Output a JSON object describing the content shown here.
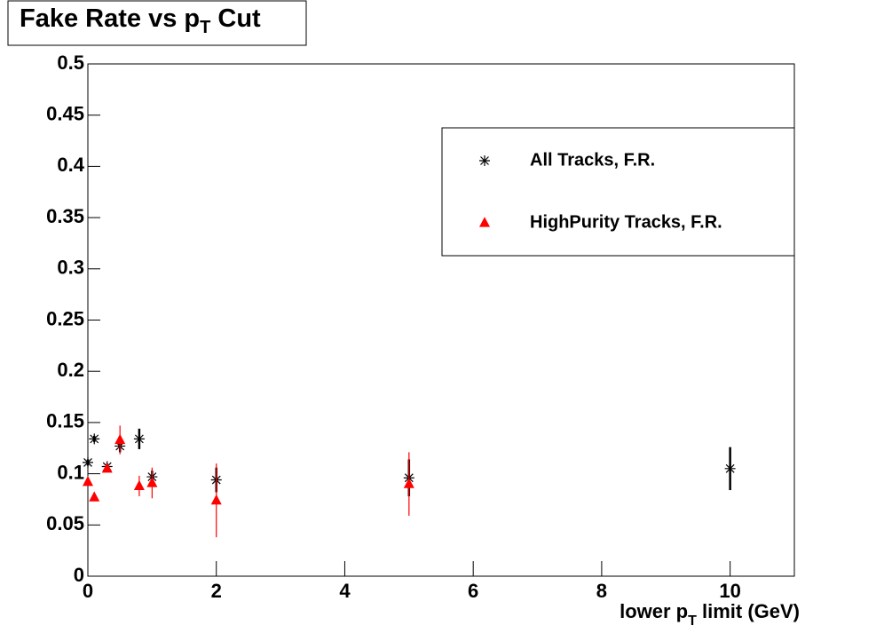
{
  "chart_data": {
    "type": "scatter",
    "title": {
      "text": "Fake Rate vs p",
      "subscript": "T",
      "suffix": " Cut"
    },
    "x_label": {
      "text": "lower p",
      "subscript": "T",
      "suffix": " limit (GeV)"
    },
    "xlim": [
      0,
      11
    ],
    "xticks": [
      0,
      2,
      4,
      6,
      8,
      10
    ],
    "ylim": [
      0,
      0.5
    ],
    "yticks": [
      0,
      0.05,
      0.1,
      0.15,
      0.2,
      0.25,
      0.3,
      0.35,
      0.4,
      0.45,
      0.5
    ],
    "legend": "upper right",
    "series": [
      {
        "name": "All Tracks, F.R.",
        "color": "#000000",
        "marker": "star",
        "x": [
          0,
          0.1,
          0.3,
          0.5,
          0.8,
          1,
          2,
          5,
          10
        ],
        "values": [
          0.111,
          0.134,
          0.107,
          0.127,
          0.134,
          0.097,
          0.094,
          0.096,
          0.105
        ],
        "errors": [
          0.003,
          0.003,
          0.003,
          0.006,
          0.01,
          0.006,
          0.012,
          0.018,
          0.021
        ]
      },
      {
        "name": "HighPurity Tracks, F.R.",
        "color": "#ff0000",
        "marker": "triangle",
        "x": [
          0,
          0.1,
          0.3,
          0.5,
          0.8,
          1,
          2,
          5
        ],
        "values": [
          0.092,
          0.077,
          0.105,
          0.133,
          0.088,
          0.091,
          0.074,
          0.09
        ],
        "errors": [
          0.003,
          0.003,
          0.003,
          0.014,
          0.01,
          0.015,
          0.036,
          0.031
        ]
      }
    ]
  }
}
